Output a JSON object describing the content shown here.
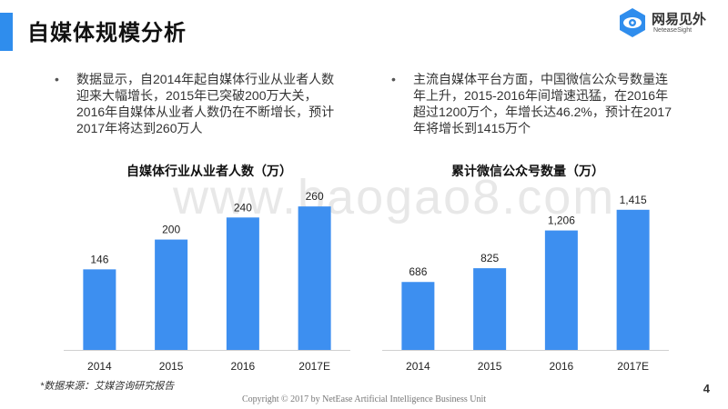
{
  "header": {
    "title": "自媒体规模分析"
  },
  "logo": {
    "name": "网易见外",
    "subtitle": "NeteaseSight",
    "icon": "eye-icon"
  },
  "bullets": {
    "left": "数据显示，自2014年起自媒体行业从业者人数迎来大幅增长，2015年已突破200万大关，2016年自媒体从业者人数仍在不断增长，预计2017年将达到260万人",
    "right": "主流自媒体平台方面，中国微信公众号数量连年上升，2015-2016年间增速迅猛，在2016年超过1200万个，年增长达46.2%，预计在2017年将增长到1415万个"
  },
  "watermark": "www.baogao8.com",
  "chart_data": [
    {
      "type": "bar",
      "title": "自媒体行业从业者人数（万）",
      "categories": [
        "2014",
        "2015",
        "2016",
        "2017E"
      ],
      "values": [
        146,
        200,
        240,
        260
      ],
      "value_labels": [
        "146",
        "200",
        "240",
        "260"
      ],
      "ylim": [
        0,
        280
      ],
      "grid": false,
      "color": "#3d8ff0"
    },
    {
      "type": "bar",
      "title": "累计微信公众号数量（万）",
      "categories": [
        "2014",
        "2015",
        "2016",
        "2017E"
      ],
      "values": [
        686,
        825,
        1206,
        1415
      ],
      "value_labels": [
        "686",
        "825",
        "1,206",
        "1,415"
      ],
      "ylim": [
        0,
        1560
      ],
      "grid": false,
      "color": "#3d8ff0"
    }
  ],
  "footer": {
    "source": "*数据来源：艾媒咨询研究报告",
    "copyright": "Copyright © 2017 by NetEase Artificial Intelligence Business Unit",
    "page_number": "4"
  }
}
